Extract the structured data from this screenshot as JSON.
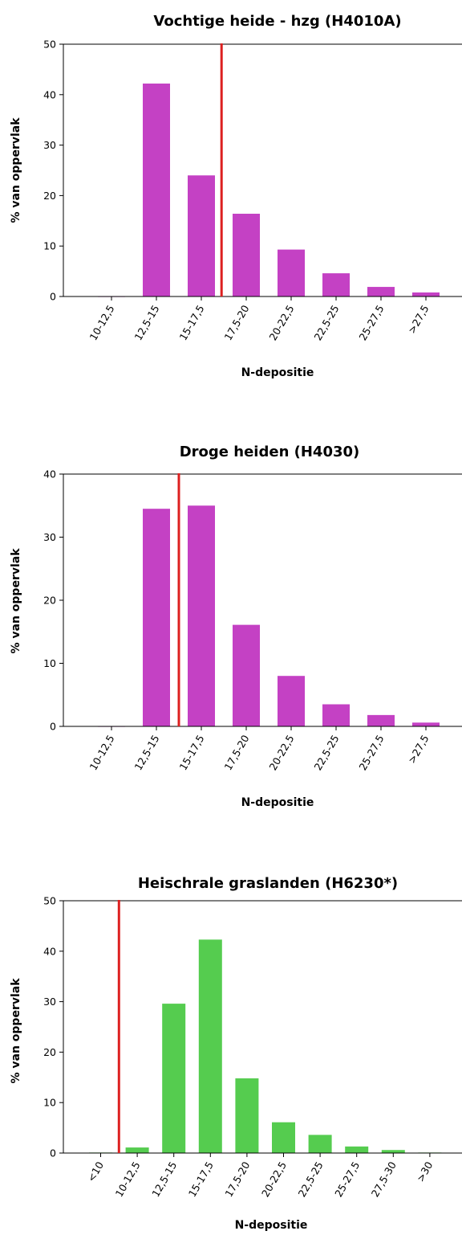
{
  "chart_data": [
    {
      "type": "bar",
      "title": "Vochtige heide - hzg (H4010A)",
      "xlabel": "N-depositie",
      "ylabel": "% van oppervlak",
      "ylim": [
        0,
        50
      ],
      "yticks": [
        0,
        10,
        20,
        30,
        40,
        50
      ],
      "categories": [
        "10-12,5",
        "12,5-15",
        "15-17,5",
        "17,5-20",
        "20-22,5",
        "22,5-25",
        "25-27,5",
        ">27,5"
      ],
      "values": [
        0,
        42.2,
        24.0,
        16.4,
        9.3,
        4.6,
        1.9,
        0.8
      ],
      "bar_color": "#c441c4",
      "reference_line": {
        "position": 2.45,
        "color": "#dd2020"
      },
      "grid": false
    },
    {
      "type": "bar",
      "title": "Droge heiden (H4030)",
      "xlabel": "N-depositie",
      "ylabel": "% van oppervlak",
      "ylim": [
        0,
        40
      ],
      "yticks": [
        0,
        10,
        20,
        30,
        40
      ],
      "categories": [
        "10-12,5",
        "12,5-15",
        "15-17,5",
        "17,5-20",
        "20-22,5",
        "22,5-25",
        "25-27,5",
        ">27,5"
      ],
      "values": [
        0,
        34.5,
        35.0,
        16.1,
        8.0,
        3.5,
        1.8,
        0.6
      ],
      "bar_color": "#c441c4",
      "reference_line": {
        "position": 1.5,
        "color": "#dd2020"
      },
      "grid": false
    },
    {
      "type": "bar",
      "title": "Heischrale graslanden (H6230*)",
      "xlabel": "N-depositie",
      "ylabel": "% van oppervlak",
      "ylim": [
        0,
        50
      ],
      "yticks": [
        0,
        10,
        20,
        30,
        40,
        50
      ],
      "categories": [
        "<10",
        "10-12,5",
        "12,5-15",
        "15-17,5",
        "17,5-20",
        "20-22,5",
        "22,5-25",
        "25-27,5",
        "27,5-30",
        ">30"
      ],
      "values": [
        0.1,
        1.1,
        29.6,
        42.3,
        14.8,
        6.1,
        3.6,
        1.3,
        0.6,
        0.1
      ],
      "bar_color": "#55cc4f",
      "reference_line": {
        "position": 0.5,
        "color": "#dd2020"
      },
      "grid": false
    }
  ]
}
